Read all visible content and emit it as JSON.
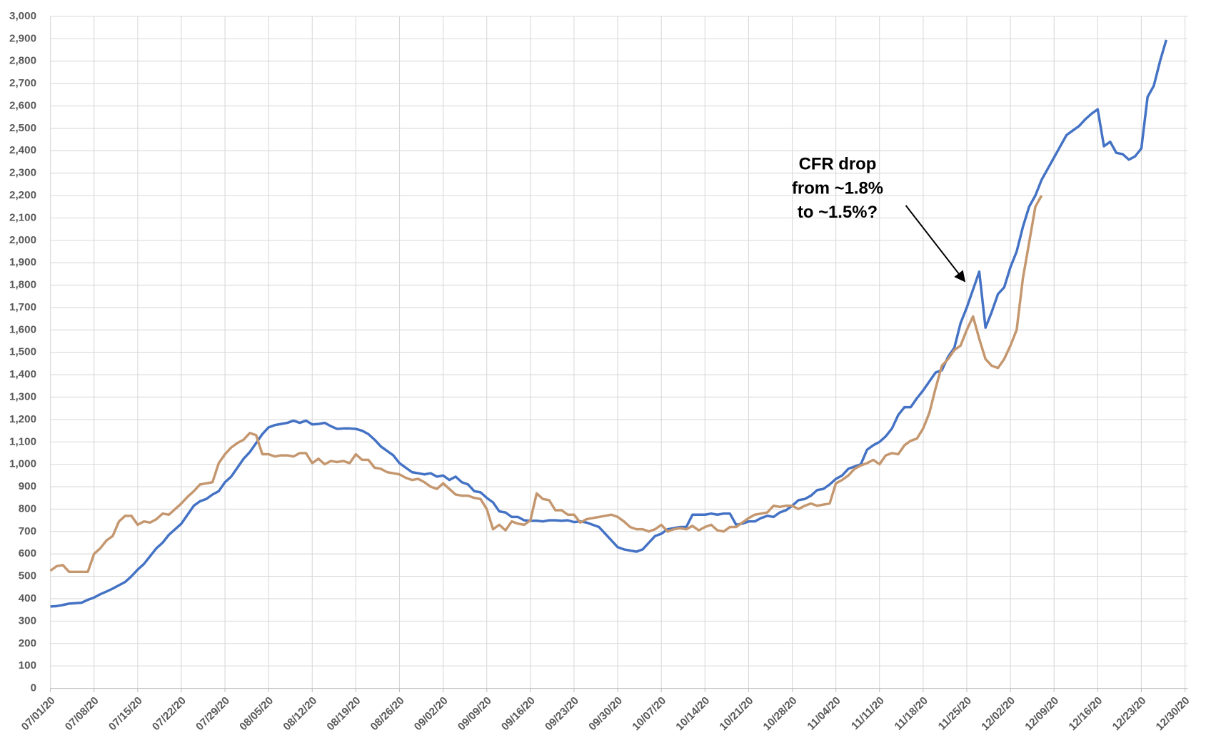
{
  "chart_data": {
    "type": "line",
    "annotation": [
      "CFR drop",
      "from ~1.8%",
      "to ~1.5%?"
    ],
    "categories": [
      "07/01/20",
      null,
      null,
      null,
      null,
      null,
      null,
      "07/08/20",
      null,
      null,
      null,
      null,
      null,
      null,
      "07/15/20",
      null,
      null,
      null,
      null,
      null,
      null,
      "07/22/20",
      null,
      null,
      null,
      null,
      null,
      null,
      "07/29/20",
      null,
      null,
      null,
      null,
      null,
      null,
      "08/05/20",
      null,
      null,
      null,
      null,
      null,
      null,
      "08/12/20",
      null,
      null,
      null,
      null,
      null,
      null,
      "08/19/20",
      null,
      null,
      null,
      null,
      null,
      null,
      "08/26/20",
      null,
      null,
      null,
      null,
      null,
      null,
      "09/02/20",
      null,
      null,
      null,
      null,
      null,
      null,
      "09/09/20",
      null,
      null,
      null,
      null,
      null,
      null,
      "09/16/20",
      null,
      null,
      null,
      null,
      null,
      null,
      "09/23/20",
      null,
      null,
      null,
      null,
      null,
      null,
      "09/30/20",
      null,
      null,
      null,
      null,
      null,
      null,
      "10/07/20",
      null,
      null,
      null,
      null,
      null,
      null,
      "10/14/20",
      null,
      null,
      null,
      null,
      null,
      null,
      "10/21/20",
      null,
      null,
      null,
      null,
      null,
      null,
      "10/28/20",
      null,
      null,
      null,
      null,
      null,
      null,
      "11/04/20",
      null,
      null,
      null,
      null,
      null,
      null,
      "11/11/20",
      null,
      null,
      null,
      null,
      null,
      null,
      "11/18/20",
      null,
      null,
      null,
      null,
      null,
      null,
      "11/25/20",
      null,
      null,
      null,
      null,
      null,
      null,
      "12/02/20",
      null,
      null,
      null,
      null,
      null,
      null,
      "12/09/20",
      null,
      null,
      null,
      null,
      null,
      null,
      "12/16/20",
      null,
      null,
      null,
      null,
      null,
      null,
      "12/23/20",
      null,
      null,
      null,
      null,
      null,
      null,
      "12/30/20"
    ],
    "series": [
      {
        "color": "#4472c4",
        "values": [
          365,
          367,
          372,
          378,
          380,
          382,
          395,
          405,
          420,
          432,
          445,
          460,
          475,
          500,
          530,
          555,
          590,
          625,
          650,
          685,
          710,
          735,
          775,
          815,
          835,
          845,
          865,
          880,
          920,
          945,
          985,
          1025,
          1055,
          1095,
          1135,
          1165,
          1175,
          1180,
          1185,
          1195,
          1185,
          1195,
          1178,
          1180,
          1185,
          1170,
          1158,
          1160,
          1160,
          1158,
          1150,
          1135,
          1110,
          1080,
          1060,
          1040,
          1005,
          985,
          965,
          960,
          955,
          960,
          945,
          950,
          930,
          945,
          920,
          910,
          880,
          875,
          850,
          830,
          790,
          785,
          765,
          765,
          750,
          748,
          748,
          745,
          750,
          750,
          748,
          750,
          742,
          745,
          740,
          730,
          720,
          690,
          660,
          630,
          620,
          615,
          610,
          620,
          650,
          680,
          690,
          710,
          715,
          720,
          720,
          775,
          775,
          775,
          780,
          775,
          780,
          780,
          730,
          735,
          745,
          745,
          760,
          770,
          765,
          785,
          795,
          815,
          840,
          845,
          860,
          885,
          890,
          910,
          935,
          950,
          980,
          990,
          1000,
          1065,
          1085,
          1100,
          1125,
          1160,
          1220,
          1255,
          1255,
          1295,
          1330,
          1370,
          1410,
          1420,
          1480,
          1520,
          1630,
          1700,
          1780,
          1860,
          1610,
          1680,
          1760,
          1790,
          1880,
          1950,
          2060,
          2150,
          2200,
          2270,
          2320,
          2370,
          2420,
          2470,
          2490,
          2510,
          2540,
          2565,
          2585,
          2420,
          2440,
          2390,
          2385,
          2360,
          2375,
          2410,
          2640,
          2690,
          2800,
          2895,
          null,
          null,
          null
        ]
      },
      {
        "color": "#c4976f",
        "values": [
          525,
          545,
          550,
          520,
          520,
          520,
          520,
          600,
          625,
          660,
          680,
          745,
          770,
          770,
          730,
          745,
          740,
          755,
          780,
          775,
          800,
          825,
          855,
          880,
          910,
          915,
          920,
          1005,
          1045,
          1075,
          1095,
          1110,
          1140,
          1130,
          1045,
          1045,
          1035,
          1040,
          1040,
          1035,
          1050,
          1050,
          1005,
          1025,
          1000,
          1015,
          1010,
          1015,
          1005,
          1045,
          1020,
          1020,
          985,
          980,
          965,
          960,
          955,
          940,
          930,
          935,
          920,
          900,
          890,
          915,
          890,
          865,
          860,
          860,
          850,
          845,
          800,
          710,
          730,
          705,
          745,
          735,
          730,
          750,
          870,
          845,
          840,
          795,
          795,
          775,
          775,
          740,
          755,
          760,
          765,
          770,
          775,
          765,
          745,
          720,
          710,
          710,
          700,
          710,
          730,
          700,
          710,
          715,
          710,
          725,
          705,
          720,
          730,
          705,
          700,
          720,
          720,
          740,
          760,
          775,
          780,
          785,
          815,
          810,
          815,
          815,
          800,
          815,
          825,
          815,
          820,
          825,
          915,
          930,
          950,
          980,
          995,
          1005,
          1020,
          1000,
          1040,
          1050,
          1045,
          1085,
          1105,
          1115,
          1160,
          1230,
          1340,
          1440,
          1470,
          1510,
          1530,
          1600,
          1660,
          1560,
          1470,
          1440,
          1430,
          1470,
          1530,
          1600,
          1830,
          1990,
          2150,
          2200,
          null,
          null,
          null,
          null,
          null,
          null,
          null,
          null,
          null,
          null,
          null,
          null,
          null,
          null,
          null,
          null,
          null,
          null,
          null,
          null,
          null,
          null,
          null
        ]
      }
    ],
    "ylim": [
      0,
      3000
    ],
    "yticks": [
      0,
      100,
      200,
      300,
      400,
      500,
      600,
      700,
      800,
      900,
      {
        "value": 1000,
        "label": "1,000"
      },
      {
        "value": 1100,
        "label": "1,100"
      },
      {
        "value": 1200,
        "label": "1,200"
      },
      {
        "value": 1300,
        "label": "1,300"
      },
      {
        "value": 1400,
        "label": "1,400"
      },
      {
        "value": 1500,
        "label": "1,500"
      },
      {
        "value": 1600,
        "label": "1,600"
      },
      {
        "value": 1700,
        "label": "1,700"
      },
      {
        "value": 1800,
        "label": "1,800"
      },
      {
        "value": 1900,
        "label": "1,900"
      },
      {
        "value": 2000,
        "label": "2,000"
      },
      {
        "value": 2100,
        "label": "2,100"
      },
      {
        "value": 2200,
        "label": "2,200"
      },
      {
        "value": 2300,
        "label": "2,300"
      },
      {
        "value": 2400,
        "label": "2,400"
      },
      {
        "value": 2500,
        "label": "2,500"
      },
      {
        "value": 2600,
        "label": "2,600"
      },
      {
        "value": 2700,
        "label": "2,700"
      },
      {
        "value": 2800,
        "label": "2,800"
      },
      {
        "value": 2900,
        "label": "2,900"
      },
      {
        "value": 3000,
        "label": "3,000"
      }
    ],
    "grid": true
  }
}
